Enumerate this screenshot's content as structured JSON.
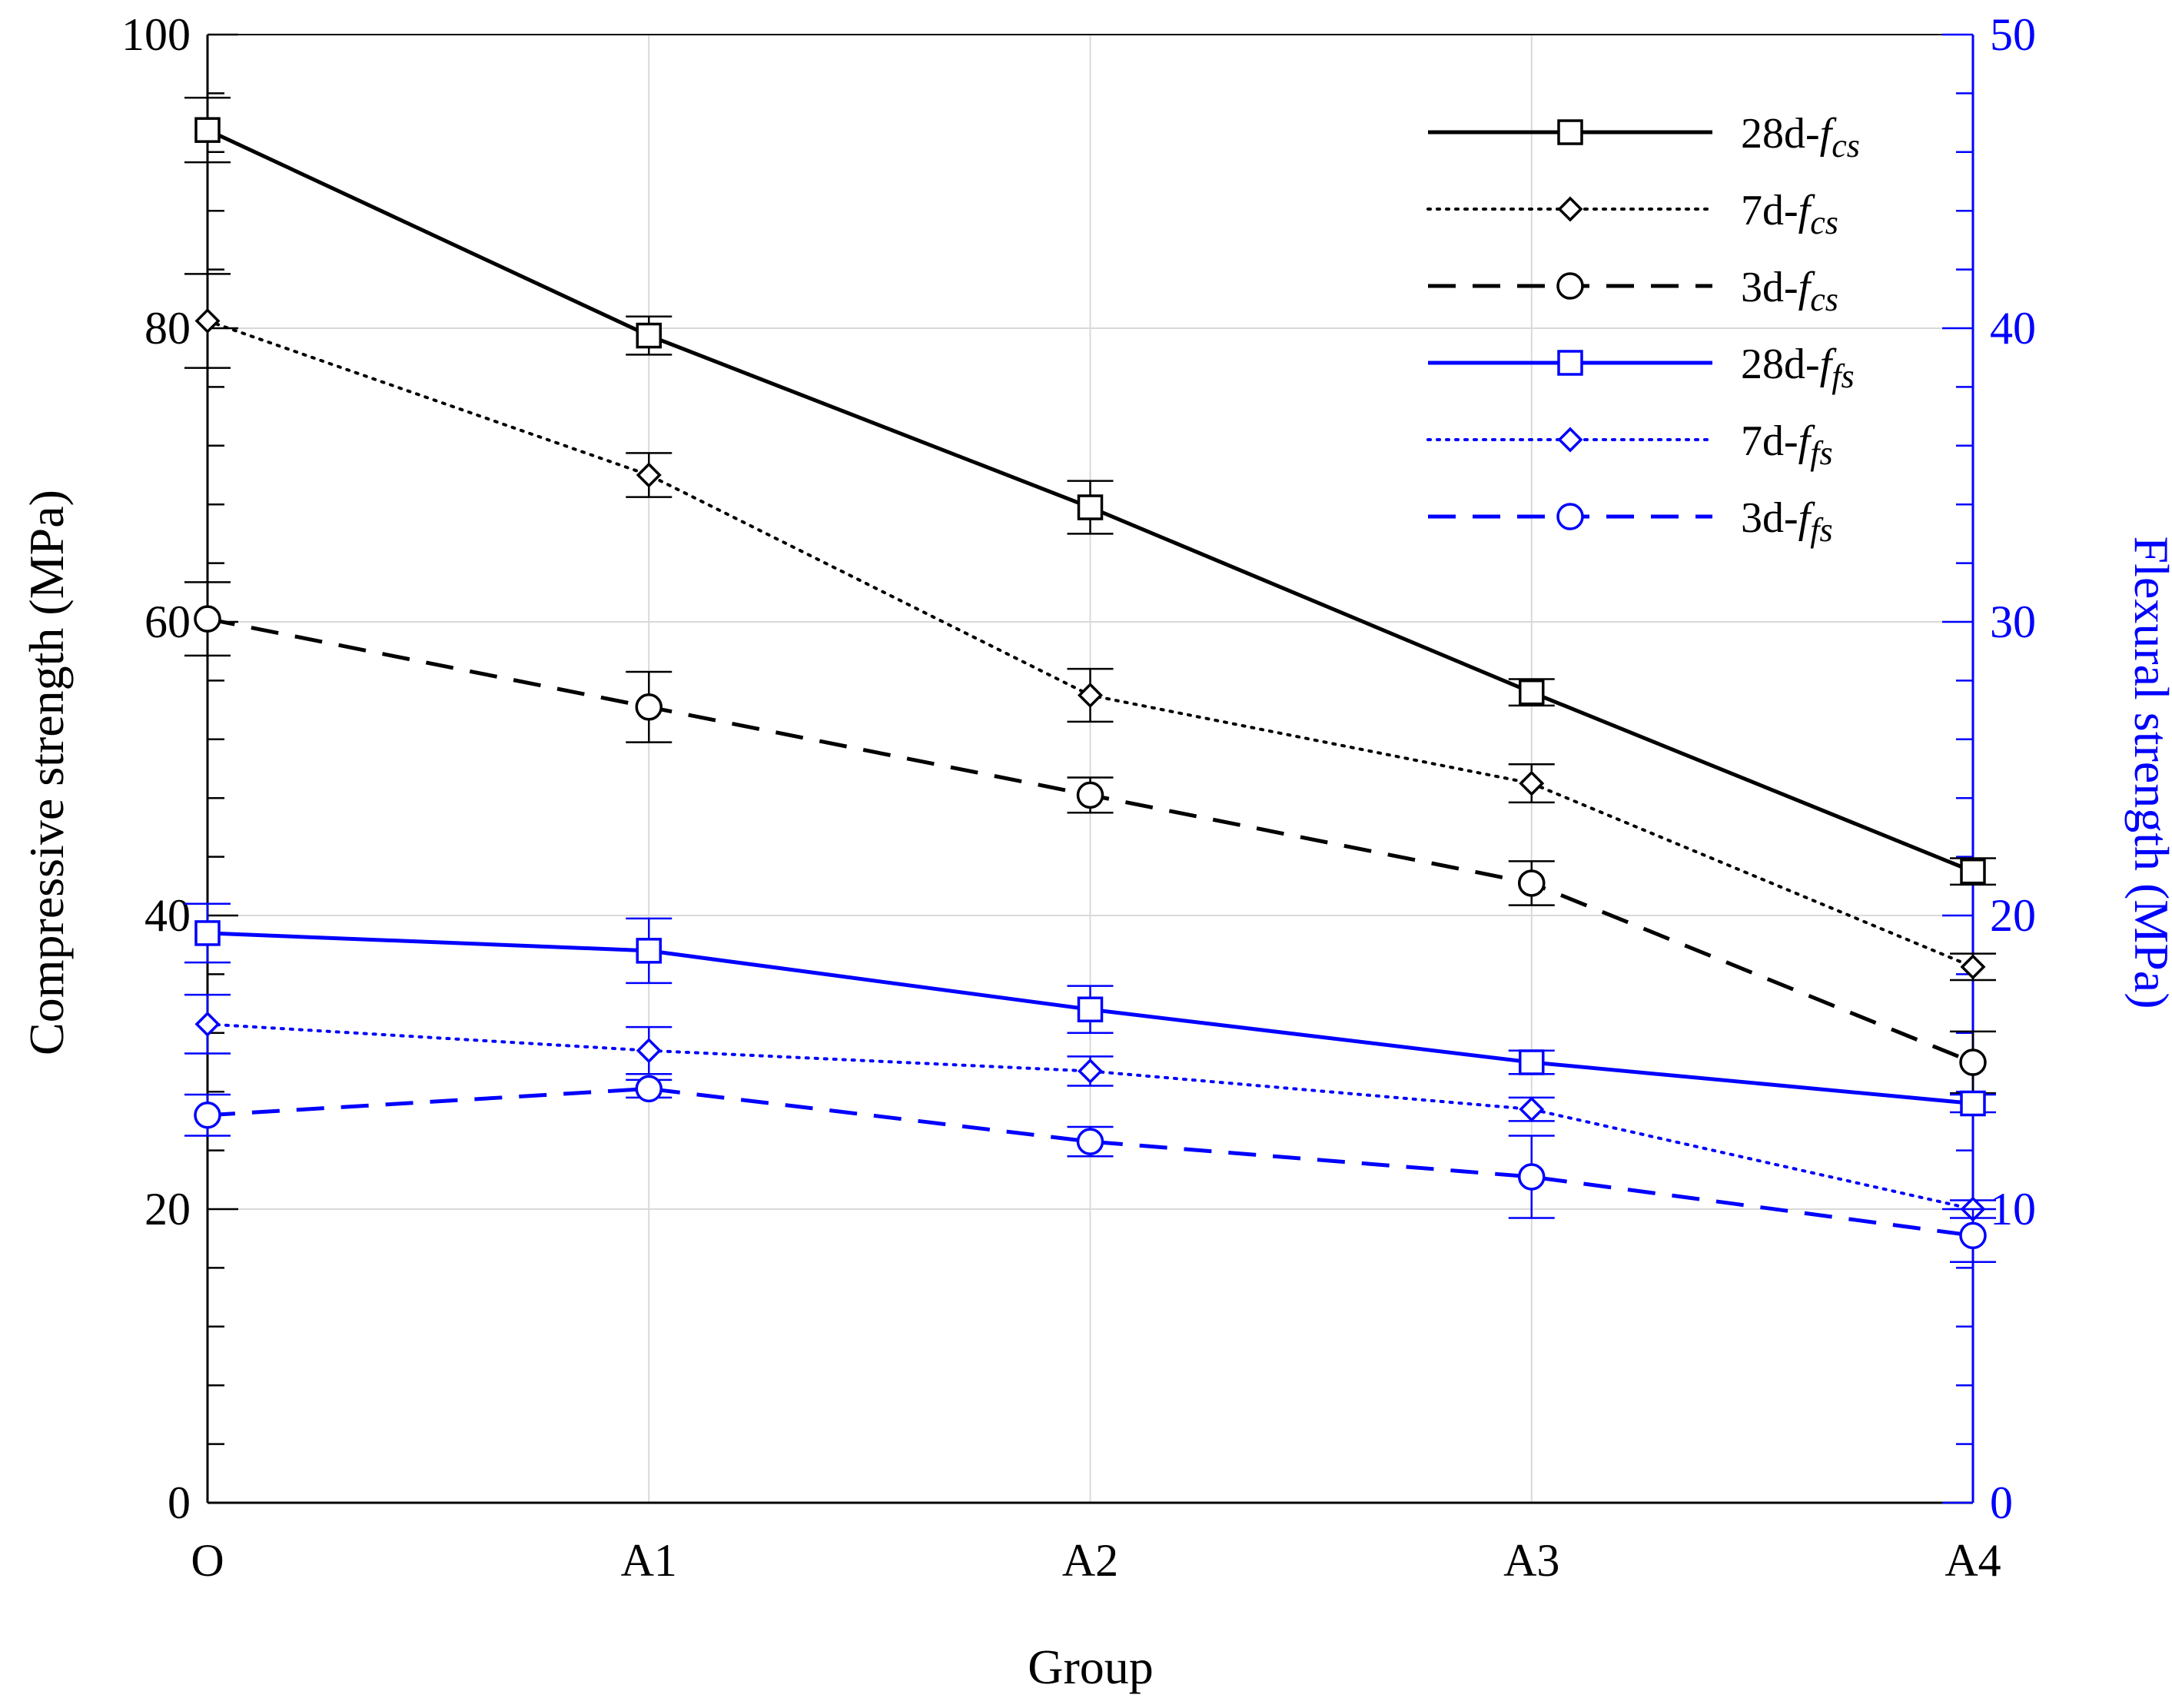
{
  "chart_data": {
    "type": "line",
    "categories": [
      "O",
      "A1",
      "A2",
      "A3",
      "A4"
    ],
    "xlabel": "Group",
    "ylabel_left": "Compressive strength (MPa)",
    "ylabel_right": "Flexural strength (MPa)",
    "ylim_left": [
      0,
      100
    ],
    "ylim_right": [
      0,
      50
    ],
    "yticks_left": [
      "0",
      "20",
      "40",
      "60",
      "80",
      "100"
    ],
    "yticks_right": [
      "0",
      "10",
      "20",
      "30",
      "40",
      "50"
    ],
    "grid": true,
    "legend_position": "top-right",
    "colors": {
      "compressive": "#000000",
      "flexural": "#0000ff"
    },
    "series": [
      {
        "key": "28d-fcs",
        "age": "28d-",
        "f": "f",
        "sub": "cs",
        "axis": "left",
        "marker": "square",
        "dash": "solid",
        "values": [
          93.5,
          79.5,
          67.8,
          55.2,
          43.0
        ],
        "errors": [
          2.2,
          1.3,
          1.8,
          0.9,
          0.9
        ]
      },
      {
        "key": "7d-fcs",
        "age": "7d-",
        "f": "f",
        "sub": "cs",
        "axis": "left",
        "marker": "diamond",
        "dash": "dotted",
        "values": [
          80.5,
          70.0,
          55.0,
          49.0,
          36.5
        ],
        "errors": [
          3.2,
          1.5,
          1.8,
          1.3,
          0.9
        ]
      },
      {
        "key": "3d-fcs",
        "age": "3d-",
        "f": "f",
        "sub": "cs",
        "axis": "left",
        "marker": "circle",
        "dash": "dashed",
        "values": [
          60.2,
          54.2,
          48.2,
          42.2,
          30.0
        ],
        "errors": [
          2.5,
          2.4,
          1.2,
          1.5,
          2.1
        ]
      },
      {
        "key": "28d-ffs",
        "age": "28d-",
        "f": "f",
        "sub": "fs",
        "axis": "right",
        "marker": "square",
        "dash": "solid",
        "values": [
          19.4,
          18.8,
          16.8,
          15.0,
          13.6
        ],
        "errors": [
          1.0,
          1.1,
          0.8,
          0.4,
          0.3
        ]
      },
      {
        "key": "7d-ffs",
        "age": "7d-",
        "f": "f",
        "sub": "fs",
        "axis": "right",
        "marker": "diamond",
        "dash": "dotted",
        "values": [
          16.3,
          15.4,
          14.7,
          13.4,
          10.0
        ],
        "errors": [
          1.0,
          0.8,
          0.5,
          0.4,
          0.3
        ]
      },
      {
        "key": "3d-ffs",
        "age": "3d-",
        "f": "f",
        "sub": "fs",
        "axis": "right",
        "marker": "circle",
        "dash": "dashed",
        "values": [
          13.2,
          14.1,
          12.3,
          11.1,
          9.1
        ],
        "errors": [
          0.7,
          0.3,
          0.5,
          1.4,
          0.9
        ]
      }
    ]
  }
}
